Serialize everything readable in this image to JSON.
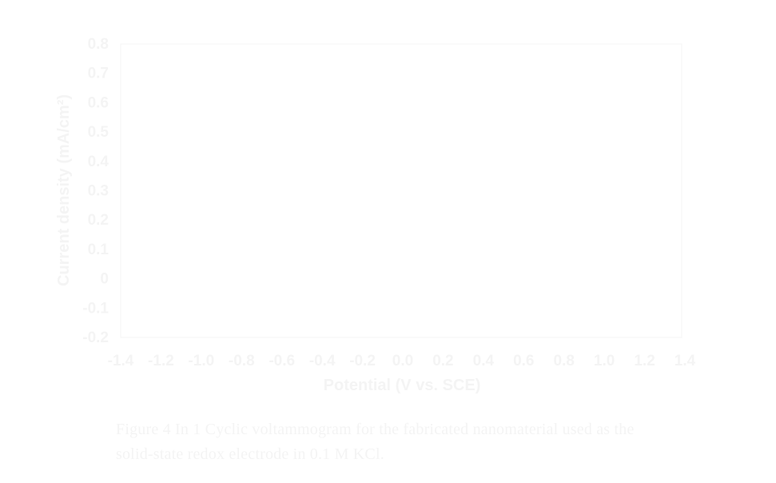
{
  "chart_data": {
    "type": "line",
    "title": "",
    "xlabel": "Potential (V vs. SCE)",
    "ylabel": "Current density (mA/cm²)",
    "x_ticks": [
      "-1.4",
      "-1.2",
      "-1.0",
      "-0.8",
      "-0.6",
      "-0.4",
      "-0.2",
      "0.0",
      "0.2",
      "0.4",
      "0.6",
      "0.8",
      "1.0",
      "1.2",
      "1.4"
    ],
    "y_ticks": [
      "0.8",
      "0.7",
      "0.6",
      "0.5",
      "0.4",
      "0.3",
      "0.2",
      "0.1",
      "0",
      "-0.1",
      "-0.2"
    ],
    "xlim": [
      -1.4,
      1.4
    ],
    "ylim": [
      -0.2,
      0.8
    ],
    "series": [],
    "grid": false
  },
  "caption": {
    "line1": "Figure 4 In 1 Cyclic voltammogram for the fabricated nanomaterial used as the",
    "line2": "solid-state redox electrode in 0.1 M KCl."
  }
}
